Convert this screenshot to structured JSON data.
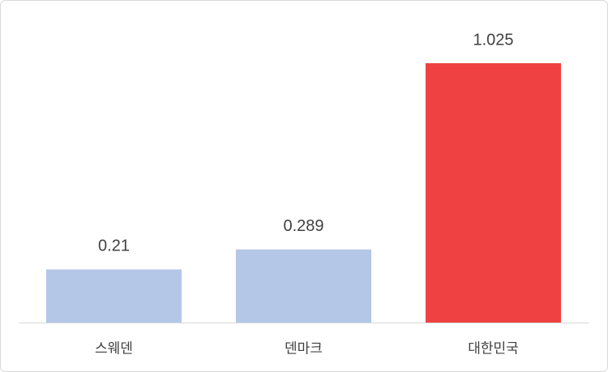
{
  "chart_data": {
    "type": "bar",
    "categories": [
      "스웨덴",
      "덴마크",
      "대한민국"
    ],
    "values": [
      0.21,
      0.289,
      1.025
    ],
    "colors": [
      "#b4c7e7",
      "#b4c7e7",
      "#ef4141"
    ]
  }
}
